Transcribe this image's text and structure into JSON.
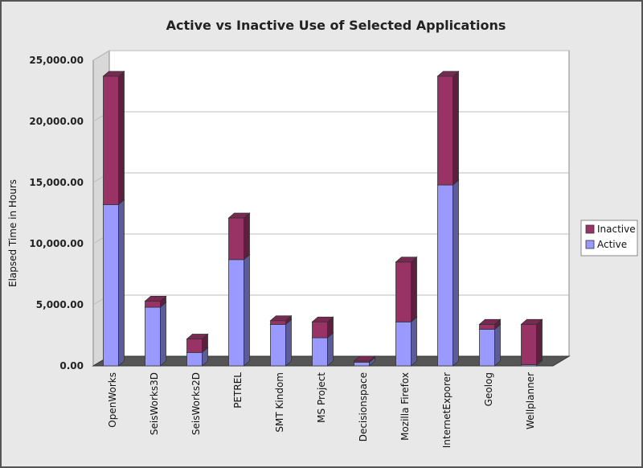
{
  "chart_data": {
    "type": "bar",
    "stacked": true,
    "three_d": true,
    "title": "Active vs Inactive Use of Selected Applications",
    "ylabel": "Elapsed Time in Hours",
    "xlabel": "",
    "ylim": [
      0,
      25000
    ],
    "yticks": [
      "0.00",
      "5,000.00",
      "10,000.00",
      "15,000.00",
      "20,000.00",
      "25,000.00"
    ],
    "ytick_values": [
      0,
      5000,
      10000,
      15000,
      20000,
      25000
    ],
    "grid": true,
    "legend_position": "right",
    "categories": [
      "OpenWorks",
      "SeisWorks3D",
      "SeisWorks2D",
      "PETREL",
      "SMT Kindom",
      "MS Project",
      "Decisionspace",
      "Mozilla Firefox",
      "InternetExporer",
      "Geolog",
      "Wellplanner"
    ],
    "series": [
      {
        "name": "Active",
        "color": "#9999ff",
        "values": [
          13200,
          4800,
          1100,
          8700,
          3400,
          2300,
          300,
          3600,
          14800,
          3000,
          100
        ]
      },
      {
        "name": "Inactive",
        "color": "#993366",
        "values": [
          10500,
          500,
          1100,
          3400,
          300,
          1300,
          100,
          4900,
          8900,
          400,
          3300
        ]
      }
    ]
  }
}
